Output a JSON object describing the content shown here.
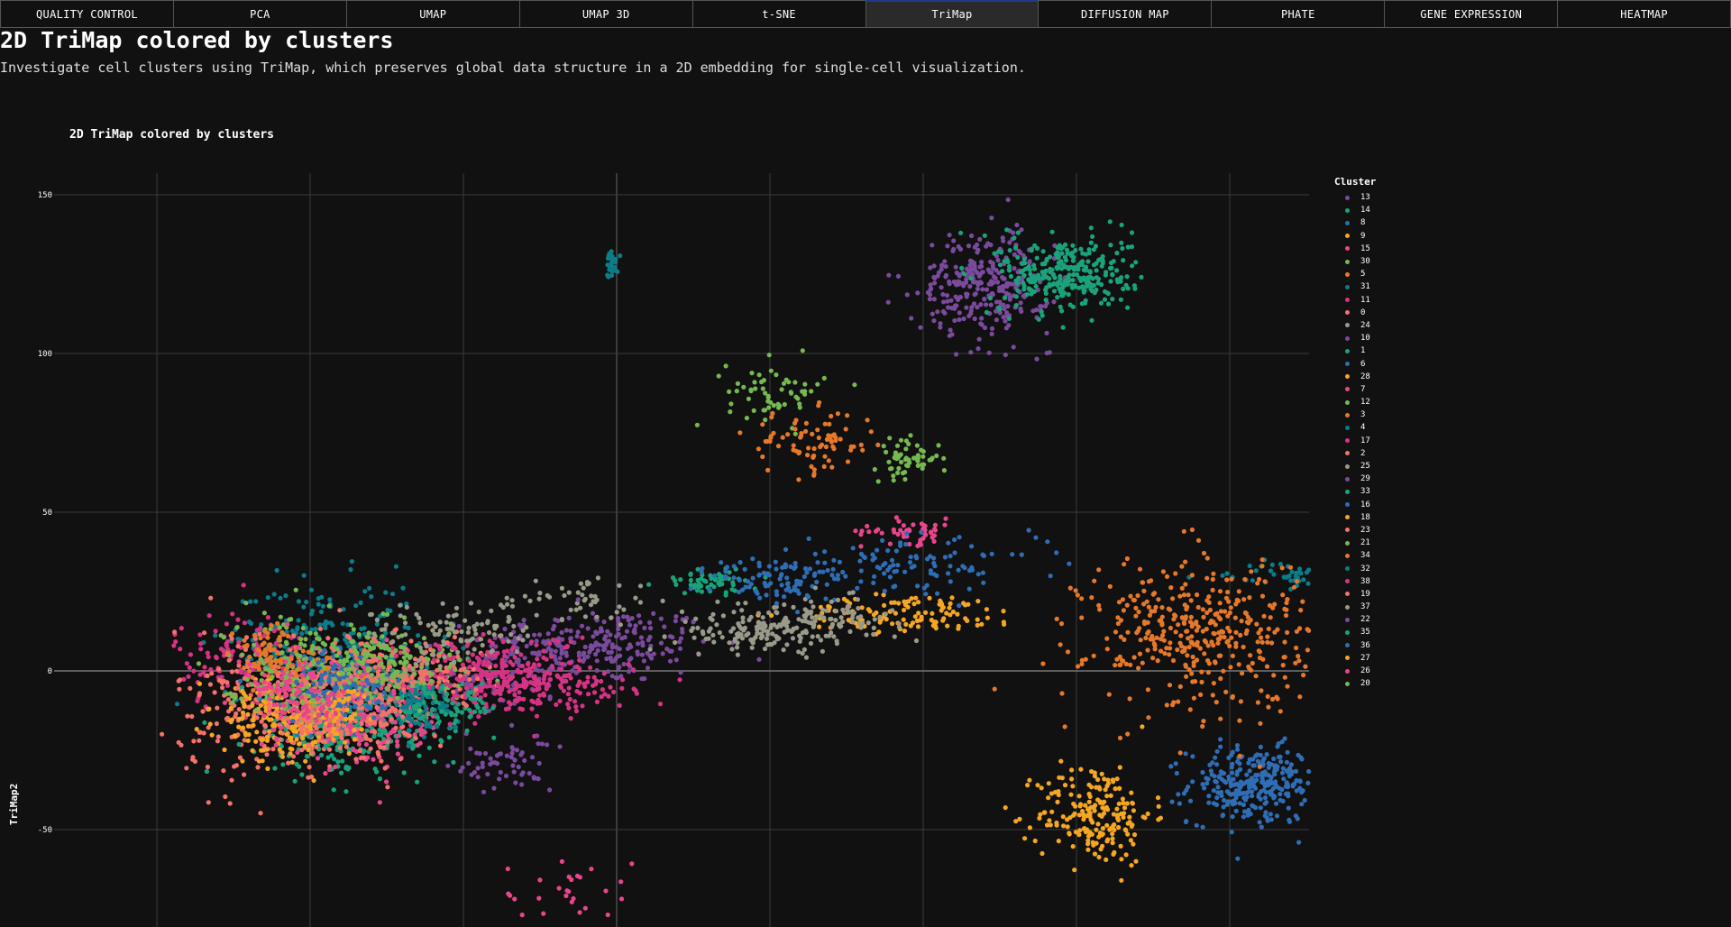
{
  "tabs": [
    {
      "label": "QUALITY CONTROL",
      "active": false
    },
    {
      "label": "PCA",
      "active": false
    },
    {
      "label": "UMAP",
      "active": false
    },
    {
      "label": "UMAP 3D",
      "active": false
    },
    {
      "label": "t-SNE",
      "active": false
    },
    {
      "label": "TriMap",
      "active": true
    },
    {
      "label": "DIFFUSION MAP",
      "active": false
    },
    {
      "label": "PHATE",
      "active": false
    },
    {
      "label": "GENE EXPRESSION",
      "active": false
    },
    {
      "label": "HEATMAP",
      "active": false
    }
  ],
  "page": {
    "title": "2D TriMap colored by clusters",
    "description": "Investigate cell clusters using TriMap, which preserves global data structure in a 2D embedding for single-cell visualization."
  },
  "chart_data": {
    "type": "scatter",
    "title": "2D TriMap colored by clusters",
    "xlabel": "",
    "ylabel": "TriMap2",
    "xlim": [
      -150,
      275
    ],
    "ylim": [
      -80,
      157
    ],
    "yticks": [
      150,
      100,
      50,
      0,
      -50
    ],
    "xgrid_values": [
      -112.5,
      -75,
      -37.5,
      0,
      37.5,
      75,
      112.5,
      150
    ],
    "grid": true,
    "legend_title": "Cluster",
    "legend_position": "right",
    "series": [
      {
        "name": "13",
        "color": "#7a4a9c",
        "clusters": [
          [
            -4,
            8,
            14,
            6,
            220
          ],
          [
            -35,
            -5,
            6,
            4,
            60
          ],
          [
            112,
            -30,
            20,
            14,
            0
          ]
        ]
      },
      {
        "name": "14",
        "color": "#1aa37a",
        "clusters": [
          [
            -58,
            -12,
            10,
            8,
            260
          ],
          [
            158,
            45,
            10,
            10,
            0
          ]
        ]
      },
      {
        "name": "8",
        "color": "#2f6db5",
        "clusters": [
          [
            156,
            -36,
            8,
            6,
            300
          ]
        ]
      },
      {
        "name": "9",
        "color": "#f5a623",
        "clusters": [
          [
            117,
            -45,
            7,
            8,
            200
          ],
          [
            72,
            18,
            14,
            3,
            120
          ]
        ]
      },
      {
        "name": "15",
        "color": "#e8468c",
        "clusters": [
          [
            72,
            44,
            6,
            2,
            50
          ],
          [
            -12,
            -70,
            8,
            6,
            30
          ]
        ]
      },
      {
        "name": "30",
        "color": "#76b852",
        "clusters": [
          [
            39,
            88,
            6,
            5,
            60
          ],
          [
            71,
            67,
            4,
            3,
            60
          ]
        ]
      },
      {
        "name": "5",
        "color": "#e6782a",
        "clusters": [
          [
            48,
            72,
            8,
            5,
            80
          ]
        ]
      },
      {
        "name": "31",
        "color": "#0b7c8a",
        "clusters": [
          [
            -72,
            8,
            12,
            10,
            260
          ],
          [
            170,
            30,
            10,
            2,
            80
          ]
        ]
      },
      {
        "name": "11",
        "color": "#d63384",
        "clusters": [
          [
            -92,
            4,
            8,
            8,
            110
          ]
        ]
      },
      {
        "name": "0",
        "color": "#f4726a",
        "clusters": [
          [
            -88,
            -10,
            10,
            12,
            200
          ],
          [
            20,
            60,
            40,
            20,
            0
          ]
        ]
      },
      {
        "name": "24",
        "color": "#9a9a8a",
        "clusters": [
          [
            35,
            12,
            10,
            3,
            120
          ],
          [
            -10,
            22,
            10,
            4,
            50
          ]
        ]
      },
      {
        "name": "10",
        "color": "#7a4a9c",
        "clusters": [
          [
            -20,
            5,
            8,
            6,
            60
          ]
        ]
      },
      {
        "name": "1",
        "color": "#1aa37a",
        "clusters": [
          [
            -70,
            -18,
            10,
            8,
            200
          ],
          [
            23,
            28,
            6,
            2,
            60
          ]
        ]
      },
      {
        "name": "6",
        "color": "#2f6db5",
        "clusters": [
          [
            -70,
            -8,
            8,
            6,
            150
          ],
          [
            68,
            33,
            18,
            4,
            120
          ]
        ]
      },
      {
        "name": "28",
        "color": "#f5a623",
        "clusters": [
          [
            -84,
            -14,
            6,
            6,
            80
          ]
        ]
      },
      {
        "name": "7",
        "color": "#e8468c",
        "clusters": [
          [
            -60,
            -14,
            10,
            8,
            220
          ]
        ]
      },
      {
        "name": "12",
        "color": "#76b852",
        "clusters": [
          [
            -50,
            0,
            8,
            6,
            120
          ]
        ]
      },
      {
        "name": "3",
        "color": "#e6782a",
        "clusters": [
          [
            143,
            12,
            14,
            12,
            400
          ],
          [
            -74,
            0,
            6,
            4,
            60
          ]
        ]
      },
      {
        "name": "4",
        "color": "#0b7c8a",
        "clusters": [
          [
            -1,
            128,
            1,
            2,
            30
          ]
        ]
      },
      {
        "name": "17",
        "color": "#d63384",
        "clusters": [
          [
            -20,
            -5,
            12,
            4,
            180
          ]
        ]
      },
      {
        "name": "2",
        "color": "#f4726a",
        "clusters": [
          [
            -62,
            -8,
            10,
            10,
            260
          ]
        ]
      },
      {
        "name": "25",
        "color": "#9a9a8a",
        "clusters": [
          [
            50,
            17,
            10,
            3,
            100
          ]
        ]
      },
      {
        "name": "29",
        "color": "#7a4a9c",
        "clusters": [
          [
            90,
            122,
            8,
            8,
            300
          ]
        ]
      },
      {
        "name": "33",
        "color": "#1aa37a",
        "clusters": [
          [
            110,
            125,
            8,
            6,
            300
          ]
        ]
      },
      {
        "name": "16",
        "color": "#2f6db5",
        "clusters": [
          [
            40,
            28,
            8,
            4,
            80
          ]
        ]
      },
      {
        "name": "18",
        "color": "#f5a623",
        "clusters": [
          [
            -80,
            -17,
            8,
            6,
            120
          ]
        ]
      },
      {
        "name": "23",
        "color": "#f4726a",
        "clusters": [
          [
            -45,
            0,
            6,
            6,
            80
          ]
        ]
      },
      {
        "name": "21",
        "color": "#76b852",
        "clusters": [
          [
            -80,
            2,
            8,
            8,
            150
          ]
        ]
      },
      {
        "name": "34",
        "color": "#e6782a",
        "clusters": [
          [
            -86,
            6,
            4,
            4,
            60
          ]
        ]
      },
      {
        "name": "32",
        "color": "#0b7c8a",
        "clusters": [
          [
            -48,
            -11,
            4,
            4,
            80
          ]
        ]
      },
      {
        "name": "38",
        "color": "#d63384",
        "clusters": [
          [
            -30,
            0,
            10,
            6,
            150
          ]
        ]
      },
      {
        "name": "19",
        "color": "#f4726a",
        "clusters": [
          [
            -72,
            -14,
            8,
            6,
            120
          ]
        ]
      },
      {
        "name": "37",
        "color": "#9a9a8a",
        "clusters": [
          [
            -40,
            12,
            10,
            5,
            100
          ]
        ]
      },
      {
        "name": "22",
        "color": "#7a4a9c",
        "clusters": [
          [
            -28,
            -30,
            6,
            4,
            60
          ]
        ]
      },
      {
        "name": "35",
        "color": "#1aa37a",
        "clusters": [
          [
            -40,
            -10,
            6,
            4,
            60
          ]
        ]
      },
      {
        "name": "36",
        "color": "#2f6db5",
        "clusters": [
          [
            -66,
            -5,
            6,
            6,
            80
          ]
        ]
      },
      {
        "name": "27",
        "color": "#f5a623",
        "clusters": [
          [
            -68,
            -12,
            4,
            4,
            40
          ]
        ]
      },
      {
        "name": "26",
        "color": "#e8468c",
        "clusters": [
          [
            -78,
            -8,
            6,
            6,
            100
          ]
        ]
      },
      {
        "name": "20",
        "color": "#76b852",
        "clusters": [
          [
            -60,
            2,
            6,
            6,
            80
          ]
        ]
      }
    ]
  }
}
